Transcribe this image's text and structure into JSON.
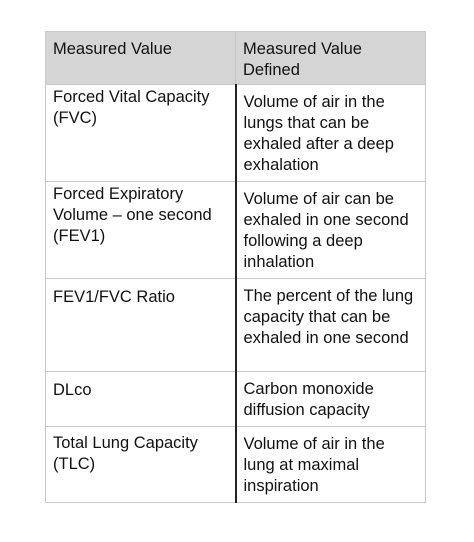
{
  "table": {
    "headers": [
      "Measured Value",
      "Measured Value Defined"
    ],
    "rows": [
      {
        "name": "Forced Vital Capacity (FVC)",
        "definition": "Volume of air in the lungs that can be exhaled after a deep exhalation"
      },
      {
        "name": "Forced Expiratory Volume – one second (FEV1)",
        "definition": "Volume of air can be exhaled in one second following a deep inhalation"
      },
      {
        "name": "FEV1/FVC Ratio",
        "definition": "The percent of the lung capacity that can be exhaled in one second"
      },
      {
        "name": "DLco",
        "definition": "Carbon monoxide diffusion capacity"
      },
      {
        "name": "Total Lung Capacity (TLC)",
        "definition": "Volume of air in the lung at maximal inspiration"
      }
    ]
  },
  "colors": {
    "header_background": "#d5d5d5",
    "border": "#c8c8c8",
    "text": "#111111"
  }
}
